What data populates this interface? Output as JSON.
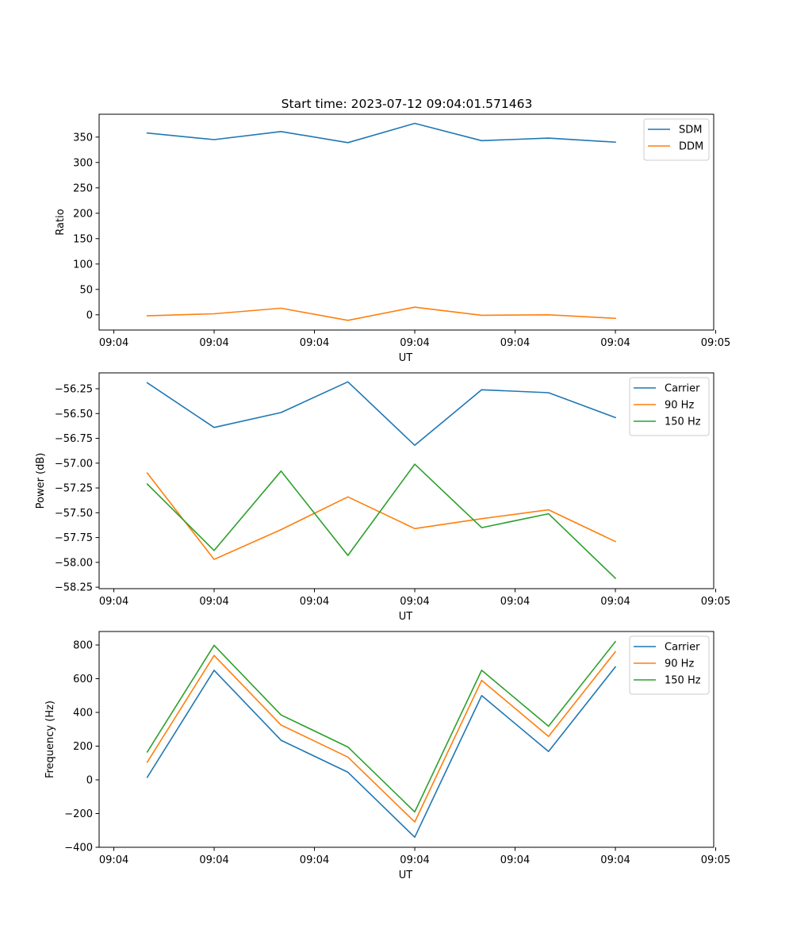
{
  "figure": {
    "title": "Start time: 2023-07-12 09:04:01.571463"
  },
  "colors": {
    "blue": "#1f77b4",
    "orange": "#ff7f0e",
    "green": "#2ca02c"
  },
  "chart_data": [
    {
      "type": "line",
      "title": "Start time: 2023-07-12 09:04:01.571463",
      "xlabel": "UT",
      "ylabel": "Ratio",
      "x": [
        1,
        2,
        3,
        4,
        5,
        6,
        7,
        8
      ],
      "xlim": [
        0.28,
        9.47
      ],
      "x_ticks": [
        0.5,
        2,
        3.5,
        5,
        6.5,
        8,
        9.5
      ],
      "x_tick_labels": [
        "09:04",
        "09:04",
        "09:04",
        "09:04",
        "09:04",
        "09:04",
        "09:05"
      ],
      "ylim": [
        -30,
        395
      ],
      "y_ticks": [
        0,
        50,
        100,
        150,
        200,
        250,
        300,
        350
      ],
      "y_tick_labels": [
        "0",
        "50",
        "100",
        "150",
        "200",
        "250",
        "300",
        "350"
      ],
      "legend_position": "top-right",
      "series": [
        {
          "name": "SDM",
          "color": "#1f77b4",
          "values": [
            358,
            345,
            361,
            339,
            377,
            343,
            348,
            340
          ]
        },
        {
          "name": "DDM",
          "color": "#ff7f0e",
          "values": [
            -2,
            2,
            13,
            -11,
            15,
            -1,
            0,
            -7
          ]
        }
      ]
    },
    {
      "type": "line",
      "title": "",
      "xlabel": "UT",
      "ylabel": "Power (dB)",
      "x": [
        1,
        2,
        3,
        4,
        5,
        6,
        7,
        8
      ],
      "xlim": [
        0.28,
        9.47
      ],
      "x_ticks": [
        0.5,
        2,
        3.5,
        5,
        6.5,
        8,
        9.5
      ],
      "x_tick_labels": [
        "09:04",
        "09:04",
        "09:04",
        "09:04",
        "09:04",
        "09:04",
        "09:05"
      ],
      "ylim": [
        -58.265,
        -56.09
      ],
      "y_ticks": [
        -58.25,
        -58.0,
        -57.75,
        -57.5,
        -57.25,
        -57.0,
        -56.75,
        -56.5,
        -56.25
      ],
      "y_tick_labels": [
        "−58.25",
        "−58.00",
        "−57.75",
        "−57.50",
        "−57.25",
        "−57.00",
        "−56.75",
        "−56.50",
        "−56.25"
      ],
      "legend_position": "top-right",
      "series": [
        {
          "name": "Carrier",
          "color": "#1f77b4",
          "values": [
            -56.19,
            -56.64,
            -56.49,
            -56.18,
            -56.82,
            -56.26,
            -56.29,
            -56.54
          ]
        },
        {
          "name": "90 Hz",
          "color": "#ff7f0e",
          "values": [
            -57.1,
            -57.97,
            -57.67,
            -57.34,
            -57.66,
            -57.56,
            -57.47,
            -57.79
          ]
        },
        {
          "name": "150 Hz",
          "color": "#2ca02c",
          "values": [
            -57.21,
            -57.88,
            -57.08,
            -57.93,
            -57.01,
            -57.65,
            -57.51,
            -58.16
          ]
        }
      ]
    },
    {
      "type": "line",
      "title": "",
      "xlabel": "UT",
      "ylabel": "Frequency (Hz)",
      "x": [
        1,
        2,
        3,
        4,
        5,
        6,
        7,
        8
      ],
      "xlim": [
        0.28,
        9.47
      ],
      "x_ticks": [
        0.5,
        2,
        3.5,
        5,
        6.5,
        8,
        9.5
      ],
      "x_tick_labels": [
        "09:04",
        "09:04",
        "09:04",
        "09:04",
        "09:04",
        "09:04",
        "09:05"
      ],
      "ylim": [
        -400,
        880
      ],
      "y_ticks": [
        -400,
        -200,
        0,
        200,
        400,
        600,
        800
      ],
      "y_tick_labels": [
        "−400",
        "−200",
        "0",
        "200",
        "400",
        "600",
        "800"
      ],
      "legend_position": "top-right",
      "series": [
        {
          "name": "Carrier",
          "color": "#1f77b4",
          "values": [
            15,
            650,
            235,
            45,
            -340,
            500,
            168,
            670
          ]
        },
        {
          "name": "90 Hz",
          "color": "#ff7f0e",
          "values": [
            105,
            738,
            325,
            135,
            -250,
            590,
            258,
            760
          ]
        },
        {
          "name": "150 Hz",
          "color": "#2ca02c",
          "values": [
            165,
            798,
            385,
            195,
            -190,
            650,
            318,
            820
          ]
        }
      ]
    }
  ]
}
